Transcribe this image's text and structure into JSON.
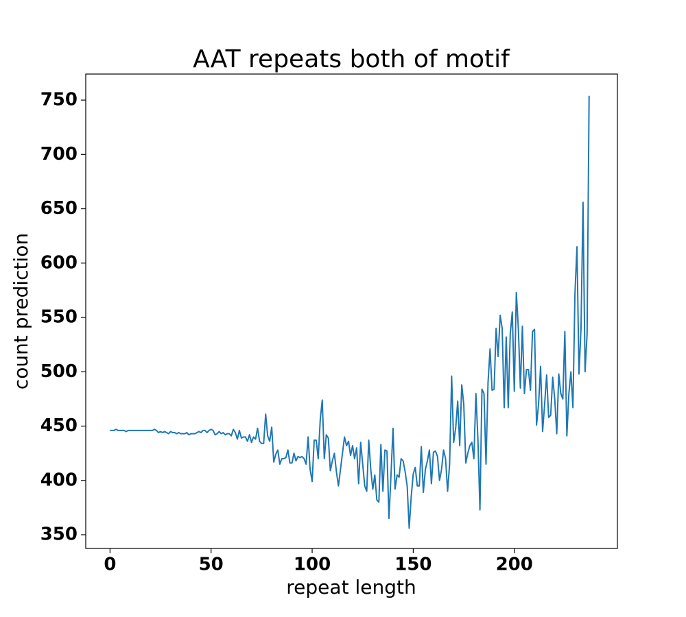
{
  "chart_data": {
    "type": "line",
    "title": "AAT repeats both of motif",
    "x_label": "repeat length",
    "y_label": "count prediction",
    "color": "#1f77b4",
    "xlim": [
      -12,
      251
    ],
    "ylim": [
      337.4,
      774
    ],
    "xticks": [
      0,
      50,
      100,
      150,
      200
    ],
    "yticks": [
      350,
      400,
      450,
      500,
      550,
      600,
      650,
      700,
      750
    ],
    "x": [
      0,
      1,
      2,
      3,
      4,
      5,
      6,
      7,
      8,
      9,
      10,
      11,
      12,
      13,
      14,
      15,
      16,
      17,
      18,
      19,
      20,
      21,
      22,
      23,
      24,
      25,
      26,
      27,
      28,
      29,
      30,
      31,
      32,
      33,
      34,
      35,
      36,
      37,
      38,
      39,
      40,
      41,
      42,
      43,
      44,
      45,
      46,
      47,
      48,
      49,
      50,
      51,
      52,
      53,
      54,
      55,
      56,
      57,
      58,
      59,
      60,
      61,
      62,
      63,
      64,
      65,
      66,
      67,
      68,
      69,
      70,
      71,
      72,
      73,
      74,
      75,
      76,
      77,
      78,
      79,
      80,
      81,
      82,
      83,
      84,
      85,
      86,
      87,
      88,
      89,
      90,
      91,
      92,
      93,
      94,
      95,
      96,
      97,
      98,
      99,
      100,
      101,
      102,
      103,
      104,
      105,
      106,
      107,
      108,
      109,
      110,
      111,
      112,
      113,
      114,
      115,
      116,
      117,
      118,
      119,
      120,
      121,
      122,
      123,
      124,
      125,
      126,
      127,
      128,
      129,
      130,
      131,
      132,
      133,
      134,
      135,
      136,
      137,
      138,
      139,
      140,
      141,
      142,
      143,
      144,
      145,
      146,
      147,
      148,
      149,
      150,
      151,
      152,
      153,
      154,
      155,
      156,
      157,
      158,
      159,
      160,
      161,
      162,
      163,
      164,
      165,
      166,
      167,
      168,
      169,
      170,
      171,
      172,
      173,
      174,
      175,
      176,
      177,
      178,
      179,
      180,
      181,
      182,
      183,
      184,
      185,
      186,
      187,
      188,
      189,
      190,
      191,
      192,
      193,
      194,
      195,
      196,
      197,
      198,
      199,
      200,
      201,
      202,
      203,
      204,
      205,
      206,
      207,
      208,
      209,
      210,
      211,
      212,
      213,
      214,
      215,
      216,
      217,
      218,
      219,
      220,
      221,
      222,
      223,
      224,
      225,
      226,
      227,
      228,
      229,
      230,
      231,
      232,
      233,
      234,
      235,
      236,
      237
    ],
    "values": [
      446,
      446,
      446,
      447,
      446,
      446,
      446,
      446,
      445,
      446,
      446,
      446,
      446,
      446,
      446,
      446,
      446,
      446,
      446,
      446,
      446,
      446,
      447,
      446,
      444,
      445,
      444,
      445,
      444,
      443,
      445,
      444,
      444,
      443,
      444,
      443,
      443,
      443,
      444,
      442,
      443,
      443,
      443,
      444,
      445,
      444,
      446,
      446,
      444,
      446,
      447,
      446,
      442,
      443,
      445,
      443,
      444,
      442,
      443,
      443,
      441,
      447,
      444,
      438,
      446,
      439,
      440,
      440,
      436,
      442,
      435,
      440,
      438,
      448,
      436,
      434,
      434,
      461,
      441,
      436,
      449,
      417,
      424,
      428,
      415,
      420,
      420,
      421,
      428,
      416,
      416,
      425,
      418,
      422,
      421,
      422,
      420,
      415,
      440,
      410,
      399,
      437,
      437,
      420,
      456,
      474,
      420,
      442,
      439,
      409,
      418,
      425,
      408,
      395,
      410,
      425,
      440,
      432,
      436,
      423,
      432,
      420,
      430,
      397,
      435,
      415,
      395,
      390,
      437,
      410,
      392,
      405,
      382,
      380,
      433,
      390,
      428,
      427,
      365,
      405,
      448,
      392,
      405,
      403,
      420,
      418,
      408,
      395,
      356,
      385,
      406,
      412,
      395,
      395,
      431,
      389,
      410,
      418,
      428,
      397,
      426,
      427,
      422,
      400,
      410,
      428,
      420,
      390,
      415,
      496,
      435,
      448,
      473,
      432,
      488,
      470,
      416,
      425,
      432,
      435,
      420,
      480,
      438,
      373,
      484,
      480,
      415,
      490,
      521,
      483,
      484,
      540,
      514,
      552,
      540,
      467,
      532,
      467,
      535,
      555,
      482,
      573,
      540,
      485,
      542,
      480,
      502,
      502,
      483,
      537,
      539,
      451,
      470,
      505,
      445,
      470,
      497,
      458,
      460,
      495,
      475,
      443,
      498,
      480,
      475,
      537,
      441,
      480,
      500,
      467,
      572,
      615,
      498,
      540,
      656,
      500,
      535,
      754
    ]
  }
}
